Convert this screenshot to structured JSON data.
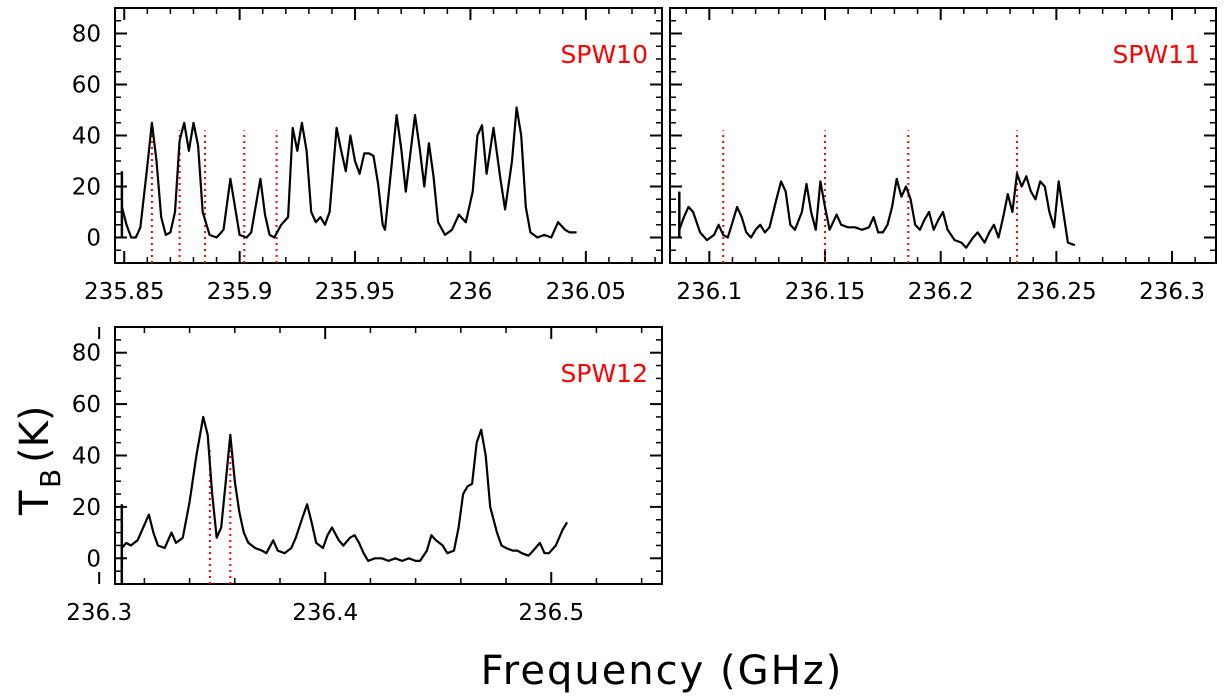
{
  "figure": {
    "xlabel": "Frequency (GHz)",
    "ylabel_main": "T",
    "ylabel_sub": "B",
    "ylabel_unit": "(K)"
  },
  "chart_data": [
    {
      "type": "line",
      "panel_label": "SPW10",
      "xlim": [
        235.846,
        236.083
      ],
      "ylim": [
        -10,
        90
      ],
      "xticks": [
        235.85,
        235.9,
        235.95,
        236.0,
        236.05
      ],
      "xtick_labels": [
        "235.85",
        "235.9",
        "235.95",
        "236",
        "236.05"
      ],
      "yticks": [
        0,
        20,
        40,
        60,
        80
      ],
      "ytick_labels": [
        "0",
        "20",
        "40",
        "60",
        "80"
      ],
      "series": [
        {
          "color": "#000000",
          "points": [
            [
              235.849,
              12
            ],
            [
              235.851,
              5
            ],
            [
              235.853,
              0
            ],
            [
              235.855,
              0
            ],
            [
              235.857,
              4
            ],
            [
              235.86,
              28
            ],
            [
              235.862,
              45
            ],
            [
              235.864,
              30
            ],
            [
              235.866,
              8
            ],
            [
              235.868,
              1
            ],
            [
              235.87,
              2
            ],
            [
              235.872,
              10
            ],
            [
              235.874,
              38
            ],
            [
              235.876,
              45
            ],
            [
              235.878,
              34
            ],
            [
              235.88,
              45
            ],
            [
              235.882,
              36
            ],
            [
              235.884,
              10
            ],
            [
              235.887,
              1
            ],
            [
              235.89,
              0
            ],
            [
              235.893,
              3
            ],
            [
              235.896,
              23
            ],
            [
              235.898,
              12
            ],
            [
              235.9,
              1
            ],
            [
              235.903,
              0
            ],
            [
              235.905,
              2
            ],
            [
              235.909,
              23
            ],
            [
              235.911,
              9
            ],
            [
              235.913,
              1
            ],
            [
              235.915,
              0
            ],
            [
              235.918,
              5
            ],
            [
              235.921,
              8
            ],
            [
              235.923,
              43
            ],
            [
              235.925,
              34
            ],
            [
              235.927,
              45
            ],
            [
              235.929,
              34
            ],
            [
              235.931,
              10
            ],
            [
              235.933,
              6
            ],
            [
              235.935,
              8
            ],
            [
              235.937,
              5
            ],
            [
              235.939,
              10
            ],
            [
              235.942,
              43
            ],
            [
              235.944,
              34
            ],
            [
              235.946,
              26
            ],
            [
              235.948,
              40
            ],
            [
              235.95,
              30
            ],
            [
              235.952,
              25
            ],
            [
              235.954,
              33
            ],
            [
              235.956,
              33
            ],
            [
              235.958,
              32
            ],
            [
              235.96,
              21
            ],
            [
              235.962,
              5
            ],
            [
              235.963,
              3
            ],
            [
              235.966,
              30
            ],
            [
              235.968,
              48
            ],
            [
              235.97,
              35
            ],
            [
              235.972,
              18
            ],
            [
              235.974,
              33
            ],
            [
              235.976,
              48
            ],
            [
              235.978,
              35
            ],
            [
              235.98,
              20
            ],
            [
              235.982,
              37
            ],
            [
              235.984,
              24
            ],
            [
              235.986,
              6
            ],
            [
              235.989,
              1
            ],
            [
              235.992,
              3
            ],
            [
              235.995,
              9
            ],
            [
              235.998,
              6
            ],
            [
              236.001,
              18
            ],
            [
              236.003,
              40
            ],
            [
              236.005,
              44
            ],
            [
              236.007,
              25
            ],
            [
              236.01,
              43
            ],
            [
              236.013,
              23
            ],
            [
              236.015,
              11
            ],
            [
              236.018,
              30
            ],
            [
              236.02,
              51
            ],
            [
              236.022,
              40
            ],
            [
              236.024,
              12
            ],
            [
              236.026,
              2
            ],
            [
              236.029,
              0
            ],
            [
              236.032,
              1
            ],
            [
              236.035,
              0
            ],
            [
              236.038,
              6
            ],
            [
              236.041,
              3
            ],
            [
              236.043,
              2
            ],
            [
              236.046,
              2
            ]
          ]
        }
      ],
      "markers": [
        235.862,
        235.874,
        235.885,
        235.902,
        235.916
      ]
    },
    {
      "type": "line",
      "panel_label": "SPW11",
      "xlim": [
        236.083,
        236.319
      ],
      "ylim": [
        -10,
        90
      ],
      "xticks": [
        236.1,
        236.15,
        236.2,
        236.25,
        236.3
      ],
      "xtick_labels": [
        "236.1",
        "236.15",
        "236.2",
        "236.25",
        "236.3"
      ],
      "yticks": [
        0,
        20,
        40,
        60,
        80
      ],
      "ytick_labels": [
        "0",
        "20",
        "40",
        "60",
        "80"
      ],
      "series": [
        {
          "color": "#000000",
          "points": [
            [
              236.087,
              3
            ],
            [
              236.089,
              8
            ],
            [
              236.091,
              12
            ],
            [
              236.093,
              10
            ],
            [
              236.096,
              2
            ],
            [
              236.099,
              -1
            ],
            [
              236.102,
              1
            ],
            [
              236.104,
              5
            ],
            [
              236.106,
              1
            ],
            [
              236.108,
              0
            ],
            [
              236.11,
              6
            ],
            [
              236.112,
              12
            ],
            [
              236.114,
              8
            ],
            [
              236.116,
              2
            ],
            [
              236.118,
              0
            ],
            [
              236.12,
              3
            ],
            [
              236.122,
              5
            ],
            [
              236.124,
              2
            ],
            [
              236.126,
              4
            ],
            [
              236.129,
              15
            ],
            [
              236.131,
              22
            ],
            [
              236.133,
              18
            ],
            [
              236.135,
              5
            ],
            [
              236.137,
              3
            ],
            [
              236.14,
              10
            ],
            [
              236.142,
              21
            ],
            [
              236.144,
              10
            ],
            [
              236.146,
              3
            ],
            [
              236.148,
              22
            ],
            [
              236.15,
              12
            ],
            [
              236.152,
              3
            ],
            [
              236.155,
              9
            ],
            [
              236.157,
              5
            ],
            [
              236.16,
              4
            ],
            [
              236.163,
              4
            ],
            [
              236.166,
              3
            ],
            [
              236.169,
              4
            ],
            [
              236.171,
              8
            ],
            [
              236.173,
              2
            ],
            [
              236.175,
              2
            ],
            [
              236.177,
              5
            ],
            [
              236.179,
              12
            ],
            [
              236.181,
              23
            ],
            [
              236.183,
              16
            ],
            [
              236.185,
              20
            ],
            [
              236.187,
              15
            ],
            [
              236.189,
              5
            ],
            [
              236.191,
              3
            ],
            [
              236.193,
              7
            ],
            [
              236.195,
              10
            ],
            [
              236.197,
              3
            ],
            [
              236.199,
              7
            ],
            [
              236.201,
              10
            ],
            [
              236.203,
              3
            ],
            [
              236.206,
              -1
            ],
            [
              236.209,
              -2
            ],
            [
              236.211,
              -4
            ],
            [
              236.214,
              0
            ],
            [
              236.216,
              2
            ],
            [
              236.219,
              -2
            ],
            [
              236.221,
              2
            ],
            [
              236.223,
              5
            ],
            [
              236.225,
              0
            ],
            [
              236.227,
              8
            ],
            [
              236.229,
              17
            ],
            [
              236.231,
              10
            ],
            [
              236.233,
              25
            ],
            [
              236.235,
              20
            ],
            [
              236.237,
              24
            ],
            [
              236.239,
              18
            ],
            [
              236.241,
              15
            ],
            [
              236.243,
              22
            ],
            [
              236.245,
              20
            ],
            [
              236.247,
              10
            ],
            [
              236.249,
              4
            ],
            [
              236.251,
              22
            ],
            [
              236.253,
              10
            ],
            [
              236.255,
              -2
            ],
            [
              236.258,
              -3
            ]
          ]
        }
      ],
      "markers": [
        236.106,
        236.15,
        236.186,
        236.233
      ]
    },
    {
      "type": "line",
      "panel_label": "SPW12",
      "xlim": [
        236.307,
        236.549
      ],
      "ylim": [
        -10,
        90
      ],
      "xticks": [
        236.3,
        236.4,
        236.5
      ],
      "xtick_labels": [
        "236.3",
        "236.4",
        "236.5"
      ],
      "yticks": [
        0,
        20,
        40,
        60,
        80
      ],
      "ytick_labels": [
        "0",
        "20",
        "40",
        "60",
        "80"
      ],
      "series": [
        {
          "color": "#000000",
          "points": [
            [
              236.31,
              4
            ],
            [
              236.312,
              6
            ],
            [
              236.314,
              5
            ],
            [
              236.317,
              7
            ],
            [
              236.319,
              11
            ],
            [
              236.322,
              17
            ],
            [
              236.324,
              10
            ],
            [
              236.326,
              5
            ],
            [
              236.329,
              4
            ],
            [
              236.332,
              10
            ],
            [
              236.334,
              6
            ],
            [
              236.337,
              8
            ],
            [
              236.34,
              22
            ],
            [
              236.343,
              40
            ],
            [
              236.346,
              55
            ],
            [
              236.348,
              48
            ],
            [
              236.35,
              25
            ],
            [
              236.352,
              8
            ],
            [
              236.354,
              12
            ],
            [
              236.356,
              30
            ],
            [
              236.358,
              48
            ],
            [
              236.36,
              30
            ],
            [
              236.362,
              18
            ],
            [
              236.364,
              10
            ],
            [
              236.366,
              6
            ],
            [
              236.369,
              4
            ],
            [
              236.372,
              3
            ],
            [
              236.374,
              2
            ],
            [
              236.377,
              7
            ],
            [
              236.379,
              3
            ],
            [
              236.382,
              2
            ],
            [
              236.385,
              4
            ],
            [
              236.387,
              8
            ],
            [
              236.39,
              16
            ],
            [
              236.392,
              21
            ],
            [
              236.394,
              14
            ],
            [
              236.396,
              6
            ],
            [
              236.399,
              4
            ],
            [
              236.401,
              9
            ],
            [
              236.403,
              12
            ],
            [
              236.406,
              7
            ],
            [
              236.408,
              5
            ],
            [
              236.411,
              8
            ],
            [
              236.413,
              9
            ],
            [
              236.415,
              6
            ],
            [
              236.417,
              2
            ],
            [
              236.419,
              -1
            ],
            [
              236.422,
              0
            ],
            [
              236.425,
              0
            ],
            [
              236.428,
              -1
            ],
            [
              236.431,
              0
            ],
            [
              236.434,
              -1
            ],
            [
              236.437,
              0
            ],
            [
              236.44,
              -1
            ],
            [
              236.442,
              -1
            ],
            [
              236.445,
              3
            ],
            [
              236.447,
              9
            ],
            [
              236.449,
              7
            ],
            [
              236.452,
              5
            ],
            [
              236.454,
              2
            ],
            [
              236.457,
              3
            ],
            [
              236.459,
              12
            ],
            [
              236.461,
              25
            ],
            [
              236.463,
              28
            ],
            [
              236.465,
              29
            ],
            [
              236.467,
              45
            ],
            [
              236.469,
              50
            ],
            [
              236.471,
              40
            ],
            [
              236.473,
              20
            ],
            [
              236.476,
              10
            ],
            [
              236.478,
              5
            ],
            [
              236.48,
              4
            ],
            [
              236.483,
              3
            ],
            [
              236.485,
              3
            ],
            [
              236.487,
              2
            ],
            [
              236.49,
              1
            ],
            [
              236.492,
              3
            ],
            [
              236.495,
              6
            ],
            [
              236.497,
              2
            ],
            [
              236.499,
              2
            ],
            [
              236.502,
              5
            ],
            [
              236.505,
              11
            ],
            [
              236.507,
              14
            ]
          ]
        }
      ],
      "markers": [
        236.349,
        236.358
      ]
    }
  ]
}
